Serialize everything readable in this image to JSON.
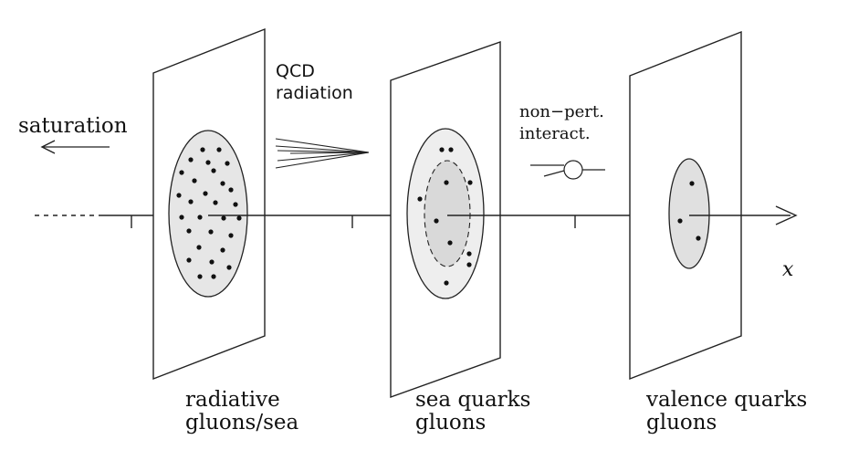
{
  "labels": {
    "saturation": "saturation",
    "qcd_line1": "QCD",
    "qcd_line2": "radiation",
    "nonpert_line1": "non−pert.",
    "nonpert_line2": "interact.",
    "x_axis": "x",
    "panel1_line1": "radiative",
    "panel1_line2": "gluons/sea",
    "panel2_line1": "sea quarks",
    "panel2_line2": "gluons",
    "panel3_line1": "valence quarks",
    "panel3_line2": "gluons"
  },
  "colors": {
    "ellipse_fill": "#e6e6e6",
    "inner_fill": "#d9d9d9",
    "ink": "#111111"
  }
}
